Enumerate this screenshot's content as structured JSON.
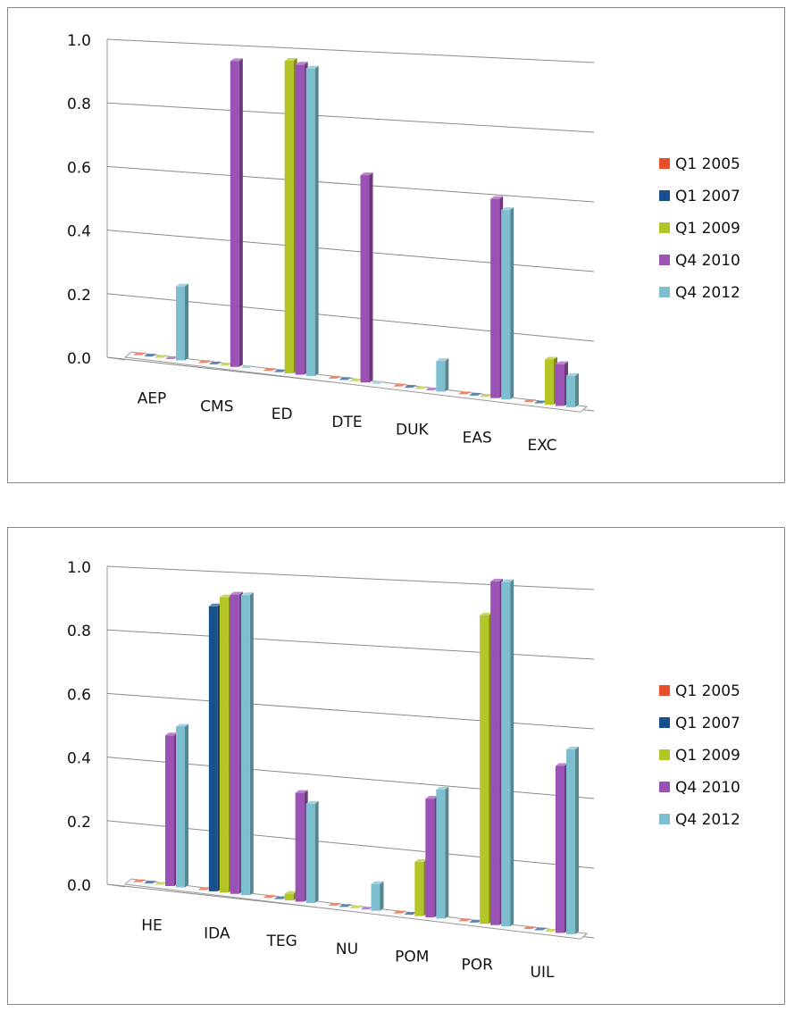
{
  "chart_data": [
    {
      "type": "bar",
      "categories": [
        "AEP",
        "CMS",
        "ED",
        "DTE",
        "DUK",
        "EAS",
        "EXC"
      ],
      "series": [
        {
          "name": "Q1 2005",
          "color": "#e8502a",
          "values": [
            0,
            0,
            0,
            0,
            0,
            0,
            0
          ]
        },
        {
          "name": "Q1 2007",
          "color": "#17508a",
          "values": [
            0,
            0,
            0,
            0,
            0,
            0,
            0
          ]
        },
        {
          "name": "Q1 2009",
          "color": "#b5c427",
          "values": [
            0,
            0,
            0.95,
            0,
            0,
            0,
            0.13
          ]
        },
        {
          "name": "Q4 2010",
          "color": "#9a52b5",
          "values": [
            0,
            0.94,
            0.94,
            0.62,
            0,
            0.58,
            0.12
          ]
        },
        {
          "name": "Q4 2012",
          "color": "#7dbfcf",
          "values": [
            0.23,
            0,
            0.93,
            0,
            0.09,
            0.55,
            0.09
          ]
        }
      ],
      "ylim": [
        0,
        1
      ],
      "yticks": [
        {
          "value": 0,
          "label": "0.0"
        },
        {
          "value": 0.2,
          "label": "0.2"
        },
        {
          "value": 0.4,
          "label": "0.4"
        },
        {
          "value": 0.6,
          "label": "0.6"
        },
        {
          "value": 0.8,
          "label": "0.8"
        },
        {
          "value": 1,
          "label": "1.0"
        }
      ],
      "grid": true,
      "legend": "right"
    },
    {
      "type": "bar",
      "categories": [
        "HE",
        "IDA",
        "TEG",
        "NU",
        "POM",
        "POR",
        "UIL"
      ],
      "series": [
        {
          "name": "Q1 2005",
          "color": "#e8502a",
          "values": [
            0,
            0,
            0,
            0,
            0,
            0,
            0
          ]
        },
        {
          "name": "Q1 2007",
          "color": "#17508a",
          "values": [
            0,
            0.88,
            0,
            0,
            0,
            0,
            0
          ]
        },
        {
          "name": "Q1 2009",
          "color": "#b5c427",
          "values": [
            0,
            0.91,
            0.02,
            0,
            0.16,
            0.9,
            0
          ]
        },
        {
          "name": "Q4 2010",
          "color": "#9a52b5",
          "values": [
            0.47,
            0.92,
            0.33,
            0,
            0.35,
            1,
            0.48
          ]
        },
        {
          "name": "Q4 2012",
          "color": "#7dbfcf",
          "values": [
            0.5,
            0.92,
            0.3,
            0.08,
            0.38,
            1,
            0.53
          ]
        }
      ],
      "ylim": [
        0,
        1
      ],
      "yticks": [
        {
          "value": 0,
          "label": "0.0"
        },
        {
          "value": 0.2,
          "label": "0.2"
        },
        {
          "value": 0.4,
          "label": "0.4"
        },
        {
          "value": 0.6,
          "label": "0.6"
        },
        {
          "value": 0.8,
          "label": "0.8"
        },
        {
          "value": 1,
          "label": "1.0"
        }
      ],
      "grid": true,
      "legend": "right"
    }
  ]
}
